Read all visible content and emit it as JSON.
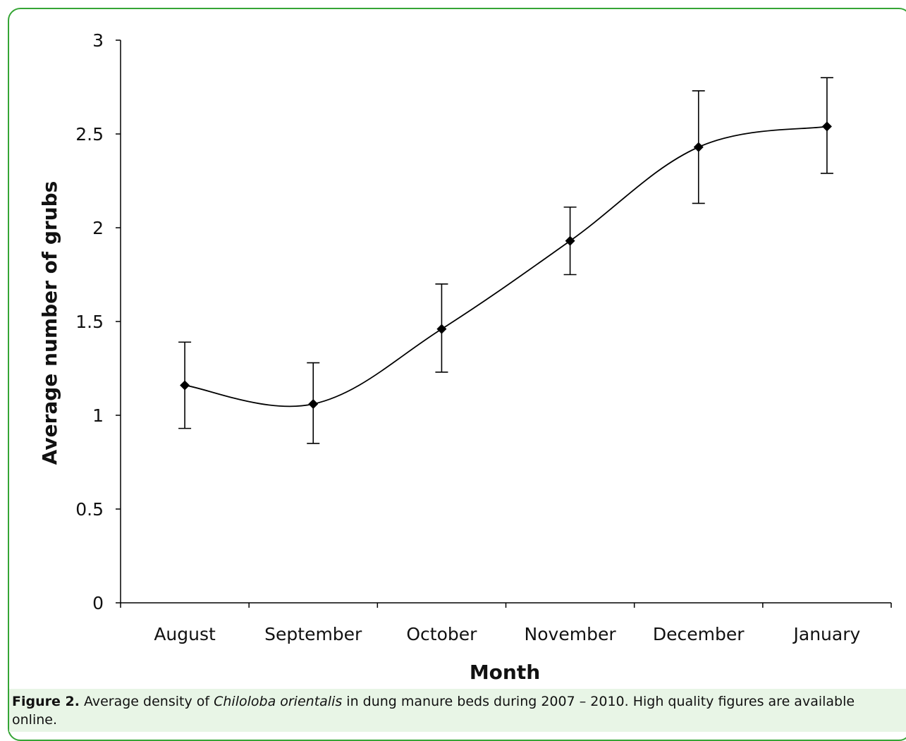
{
  "caption": {
    "label": "Figure 2.",
    "text_before": " Average density of ",
    "species": "Chiloloba orientalis",
    "text_after": " in dung manure beds during 2007 – 2010. High quality figures are available online."
  },
  "colors": {
    "frame": "#35a535",
    "caption_background": "#e8f5e6",
    "line": "#000000"
  },
  "chart_data": {
    "type": "line",
    "title": "",
    "xlabel": "Month",
    "ylabel": "Average number of grubs",
    "categories": [
      "August",
      "September",
      "October",
      "November",
      "December",
      "January"
    ],
    "series": [
      {
        "values": [
          1.16,
          1.06,
          1.46,
          1.93,
          2.43,
          2.54
        ],
        "error_low": [
          0.93,
          0.85,
          1.23,
          1.75,
          2.13,
          2.29
        ],
        "error_high": [
          1.39,
          1.28,
          1.7,
          2.11,
          2.73,
          2.8
        ],
        "marker": "diamond",
        "smoothed": true
      }
    ],
    "ylim": [
      0,
      3
    ],
    "yticks": [
      "0",
      "0.5",
      "1",
      "1.5",
      "2",
      "2.5",
      "3"
    ],
    "grid": false,
    "legend": "none"
  }
}
